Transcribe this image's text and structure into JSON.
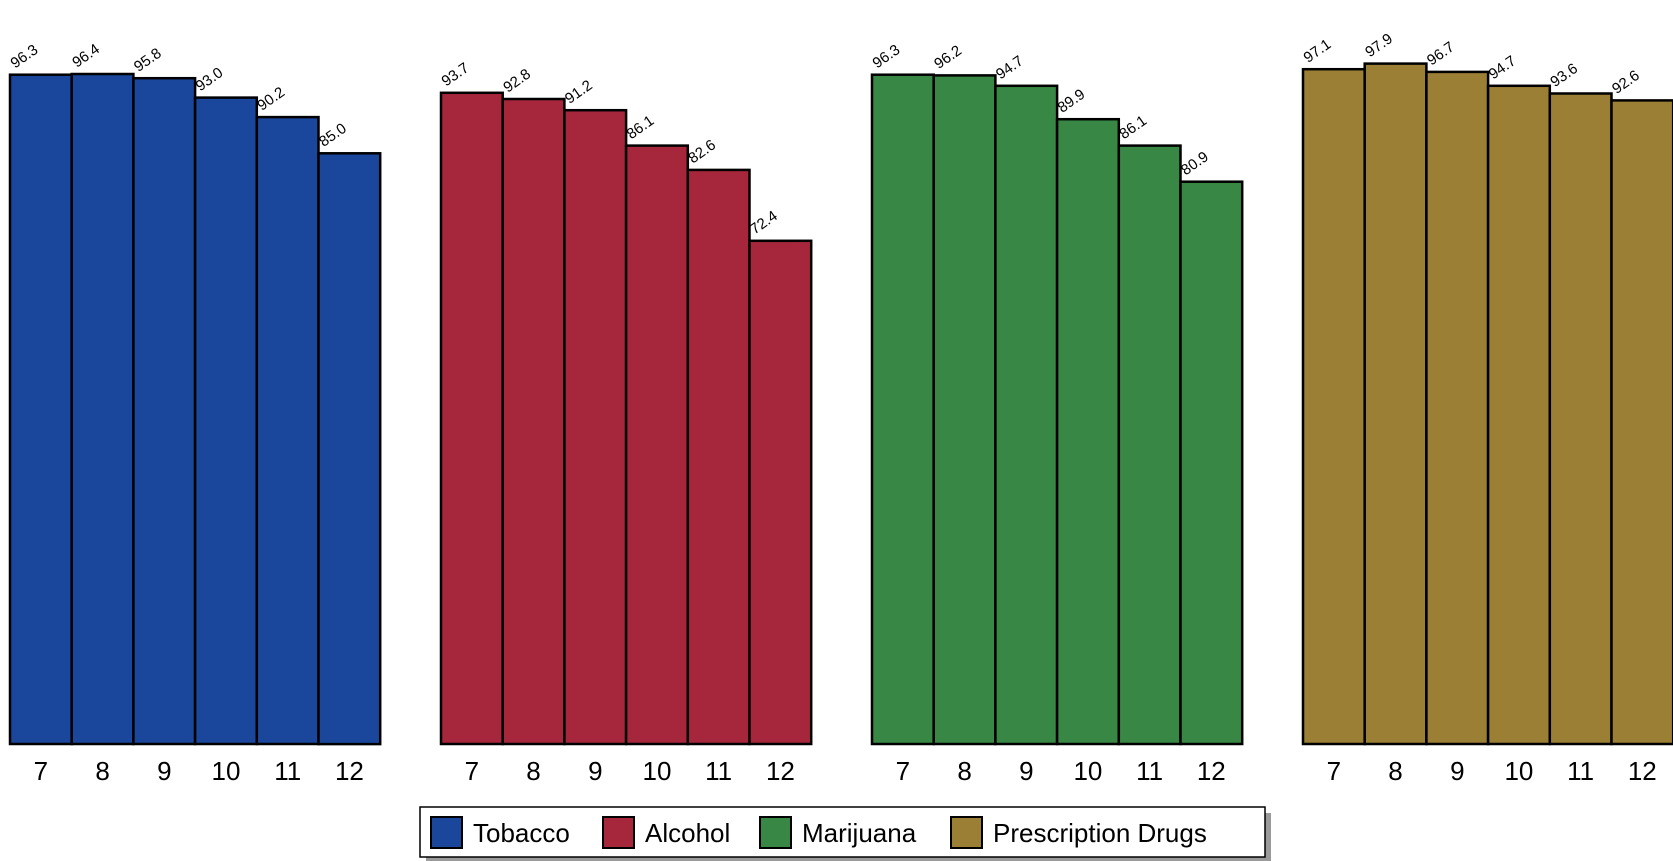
{
  "chart_data": {
    "type": "bar",
    "categories": [
      "7",
      "8",
      "9",
      "10",
      "11",
      "12"
    ],
    "ylim": [
      0,
      100
    ],
    "grid": false,
    "legend_placement": "bottom-center",
    "series": [
      {
        "name": "Tobacco",
        "color": "#1a479b",
        "values": [
          96.3,
          96.4,
          95.8,
          93.0,
          90.2,
          85.0
        ],
        "labels": [
          "96.3",
          "96.4",
          "95.8",
          "93.0",
          "90.2",
          "85.0"
        ]
      },
      {
        "name": "Alcohol",
        "color": "#a6263b",
        "values": [
          93.7,
          92.8,
          91.2,
          86.1,
          82.6,
          72.4
        ],
        "labels": [
          "93.7",
          "92.8",
          "91.2",
          "86.1",
          "82.6",
          "72.4"
        ]
      },
      {
        "name": "Marijuana",
        "color": "#388744",
        "values": [
          96.3,
          96.2,
          94.7,
          89.9,
          86.1,
          80.9
        ],
        "labels": [
          "96.3",
          "96.2",
          "94.7",
          "89.9",
          "86.1",
          "80.9"
        ]
      },
      {
        "name": "Prescription Drugs",
        "color": "#9a7f35",
        "values": [
          97.1,
          97.9,
          96.7,
          94.7,
          93.6,
          92.6
        ],
        "labels": [
          "97.1",
          "97.9",
          "96.7",
          "94.7",
          "93.6",
          "92.6"
        ]
      }
    ]
  }
}
